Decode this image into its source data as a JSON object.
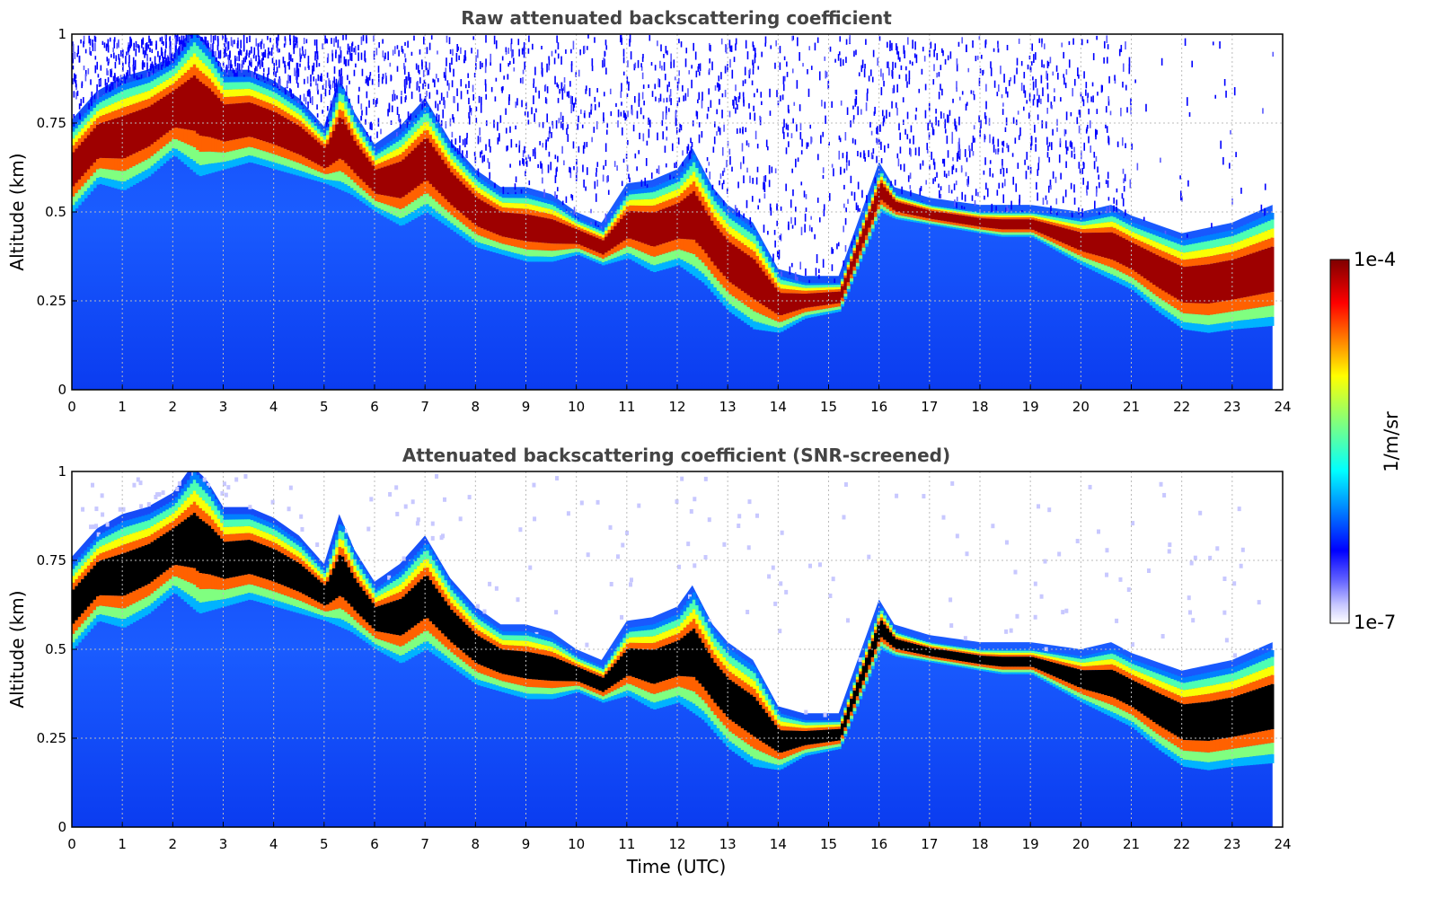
{
  "chart_data": [
    {
      "type": "heatmap",
      "title": "Raw attenuated backscattering coefficient",
      "xlabel": "",
      "ylabel": "Altitude (km)",
      "xlim": [
        0,
        24
      ],
      "ylim": [
        0,
        1
      ],
      "x_ticks": [
        "0",
        "1",
        "2",
        "3",
        "4",
        "5",
        "6",
        "7",
        "8",
        "9",
        "10",
        "11",
        "12",
        "13",
        "14",
        "15",
        "16",
        "17",
        "18",
        "19",
        "20",
        "21",
        "22",
        "23",
        "24"
      ],
      "y_ticks": [
        "0",
        "0.25",
        "0.5",
        "0.75",
        "1"
      ],
      "grid": true,
      "colormap": "jet",
      "layer_top_km": [
        [
          0,
          0.74
        ],
        [
          0.5,
          0.82
        ],
        [
          1,
          0.86
        ],
        [
          1.5,
          0.88
        ],
        [
          2,
          0.92
        ],
        [
          2.4,
          1.0
        ],
        [
          2.7,
          0.95
        ],
        [
          3,
          0.88
        ],
        [
          3.5,
          0.88
        ],
        [
          4,
          0.85
        ],
        [
          4.5,
          0.8
        ],
        [
          5,
          0.72
        ],
        [
          5.3,
          0.86
        ],
        [
          5.6,
          0.76
        ],
        [
          6,
          0.67
        ],
        [
          6.5,
          0.72
        ],
        [
          7,
          0.8
        ],
        [
          7.5,
          0.68
        ],
        [
          8,
          0.6
        ],
        [
          8.5,
          0.55
        ],
        [
          9,
          0.55
        ],
        [
          9.5,
          0.53
        ],
        [
          10,
          0.48
        ],
        [
          10.5,
          0.45
        ],
        [
          11,
          0.56
        ],
        [
          11.5,
          0.57
        ],
        [
          12,
          0.6
        ],
        [
          12.3,
          0.66
        ],
        [
          12.7,
          0.55
        ],
        [
          13,
          0.5
        ],
        [
          13.5,
          0.45
        ],
        [
          14,
          0.32
        ],
        [
          14.5,
          0.3
        ],
        [
          15.2,
          0.3
        ],
        [
          16,
          0.62
        ],
        [
          16.3,
          0.55
        ],
        [
          17,
          0.52
        ],
        [
          18,
          0.5
        ],
        [
          18.5,
          0.5
        ],
        [
          19,
          0.5
        ],
        [
          20,
          0.48
        ],
        [
          20.6,
          0.5
        ],
        [
          21,
          0.47
        ],
        [
          22,
          0.42
        ],
        [
          23,
          0.45
        ],
        [
          23.8,
          0.5
        ]
      ],
      "layer_bottom_km": [
        [
          0,
          0.5
        ],
        [
          0.5,
          0.58
        ],
        [
          1,
          0.56
        ],
        [
          1.5,
          0.6
        ],
        [
          2,
          0.66
        ],
        [
          2.5,
          0.6
        ],
        [
          3,
          0.62
        ],
        [
          3.5,
          0.64
        ],
        [
          4,
          0.62
        ],
        [
          4.5,
          0.6
        ],
        [
          5,
          0.58
        ],
        [
          5.5,
          0.55
        ],
        [
          6,
          0.5
        ],
        [
          6.5,
          0.46
        ],
        [
          7,
          0.5
        ],
        [
          7.5,
          0.45
        ],
        [
          8,
          0.4
        ],
        [
          8.5,
          0.38
        ],
        [
          9,
          0.36
        ],
        [
          9.5,
          0.36
        ],
        [
          10,
          0.38
        ],
        [
          10.5,
          0.35
        ],
        [
          11,
          0.37
        ],
        [
          11.5,
          0.33
        ],
        [
          12,
          0.35
        ],
        [
          12.5,
          0.3
        ],
        [
          13,
          0.22
        ],
        [
          13.5,
          0.17
        ],
        [
          14,
          0.16
        ],
        [
          14.5,
          0.2
        ],
        [
          15.2,
          0.22
        ],
        [
          16,
          0.5
        ],
        [
          16.3,
          0.48
        ],
        [
          18.4,
          0.43
        ],
        [
          19,
          0.43
        ],
        [
          20,
          0.35
        ],
        [
          21,
          0.28
        ],
        [
          21.5,
          0.22
        ],
        [
          22,
          0.17
        ],
        [
          22.5,
          0.16
        ],
        [
          23,
          0.17
        ],
        [
          23.8,
          0.18
        ]
      ]
    },
    {
      "type": "heatmap",
      "title": "Attenuated backscattering coefficient (SNR-screened)",
      "xlabel": "Time (UTC)",
      "ylabel": "Altitude (km)",
      "xlim": [
        0,
        24
      ],
      "ylim": [
        0,
        1
      ],
      "x_ticks": [
        "0",
        "1",
        "2",
        "3",
        "4",
        "5",
        "6",
        "7",
        "8",
        "9",
        "10",
        "11",
        "12",
        "13",
        "14",
        "15",
        "16",
        "17",
        "18",
        "19",
        "20",
        "21",
        "22",
        "23",
        "24"
      ],
      "y_ticks": [
        "0",
        "0.25",
        "0.5",
        "0.75",
        "1"
      ],
      "grid": true,
      "colormap": "jet",
      "saturated_color": "#000000"
    }
  ],
  "colorbar": {
    "max_label": "1e-4",
    "min_label": "1e-7",
    "unit_label": "1/m/sr"
  }
}
